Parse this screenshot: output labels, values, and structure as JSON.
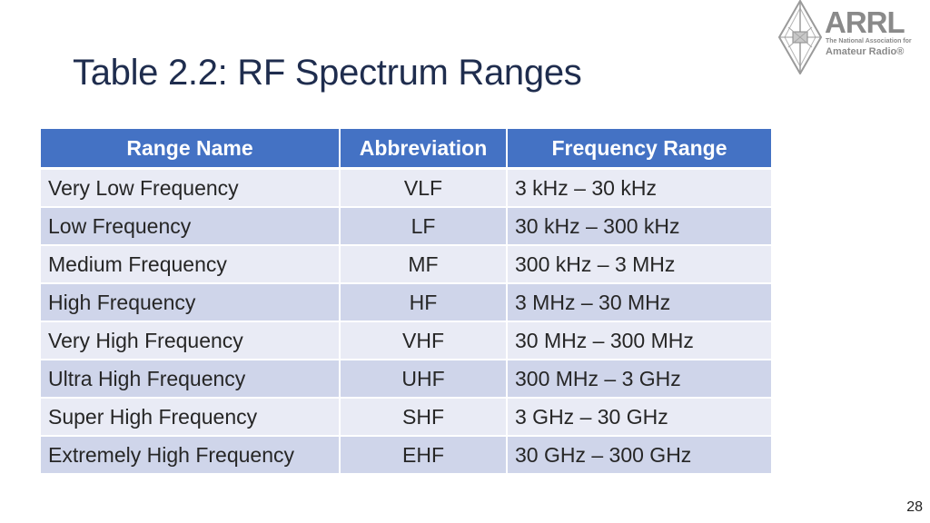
{
  "slide": {
    "title": "Table 2.2: RF Spectrum Ranges",
    "page_number": "28"
  },
  "logo": {
    "brand": "ARRL",
    "tagline_1": "The National Association for",
    "tagline_2": "Amateur Radio®",
    "color": "#8a8a8a"
  },
  "table": {
    "header_color": "#4472c4",
    "headers": [
      "Range Name",
      "Abbreviation",
      "Frequency Range"
    ],
    "rows": [
      [
        "Very Low Frequency",
        "VLF",
        "3 kHz – 30 kHz"
      ],
      [
        "Low Frequency",
        "LF",
        "30 kHz – 300 kHz"
      ],
      [
        "Medium Frequency",
        "MF",
        "300 kHz – 3 MHz"
      ],
      [
        "High Frequency",
        "HF",
        "3 MHz – 30 MHz"
      ],
      [
        "Very High Frequency",
        "VHF",
        "30 MHz – 300 MHz"
      ],
      [
        "Ultra High Frequency",
        "UHF",
        "300 MHz – 3 GHz"
      ],
      [
        "Super High Frequency",
        "SHF",
        "3 GHz – 30 GHz"
      ],
      [
        "Extremely High Frequency",
        "EHF",
        "30 GHz – 300 GHz"
      ]
    ]
  }
}
